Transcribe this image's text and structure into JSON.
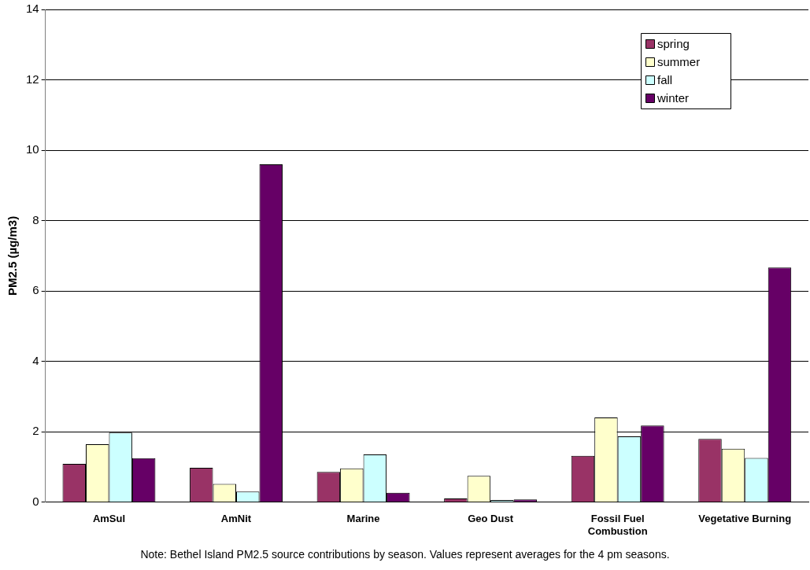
{
  "chart_data": {
    "type": "bar",
    "ylabel": "PM2.5 (µg/m3)",
    "categories": [
      "AmSul",
      "AmNit",
      "Marine",
      "Geo Dust",
      [
        "Fossil Fuel",
        "Combustion"
      ],
      "Vegetative Burning"
    ],
    "series": [
      {
        "name": "spring",
        "color": "#993366",
        "values": [
          1.09,
          0.98,
          0.86,
          0.11,
          1.32,
          1.8
        ]
      },
      {
        "name": "summer",
        "color": "#ffffcc",
        "values": [
          1.65,
          0.52,
          0.96,
          0.75,
          2.41,
          1.52
        ]
      },
      {
        "name": "fall",
        "color": "#ccffff",
        "values": [
          1.98,
          0.3,
          1.36,
          0.06,
          1.87,
          1.26
        ]
      },
      {
        "name": "winter",
        "color": "#660066",
        "values": [
          1.25,
          9.6,
          0.27,
          0.08,
          2.18,
          6.67
        ]
      }
    ],
    "ylim": [
      0,
      14
    ],
    "yticks": [
      0,
      2,
      4,
      6,
      8,
      10,
      12,
      14
    ],
    "grid": "y",
    "legend": "top right",
    "annotations": [
      "Note: Bethel Island PM2.5 source contributions by season.  Values represent averages for the 4 pm seasons."
    ]
  }
}
